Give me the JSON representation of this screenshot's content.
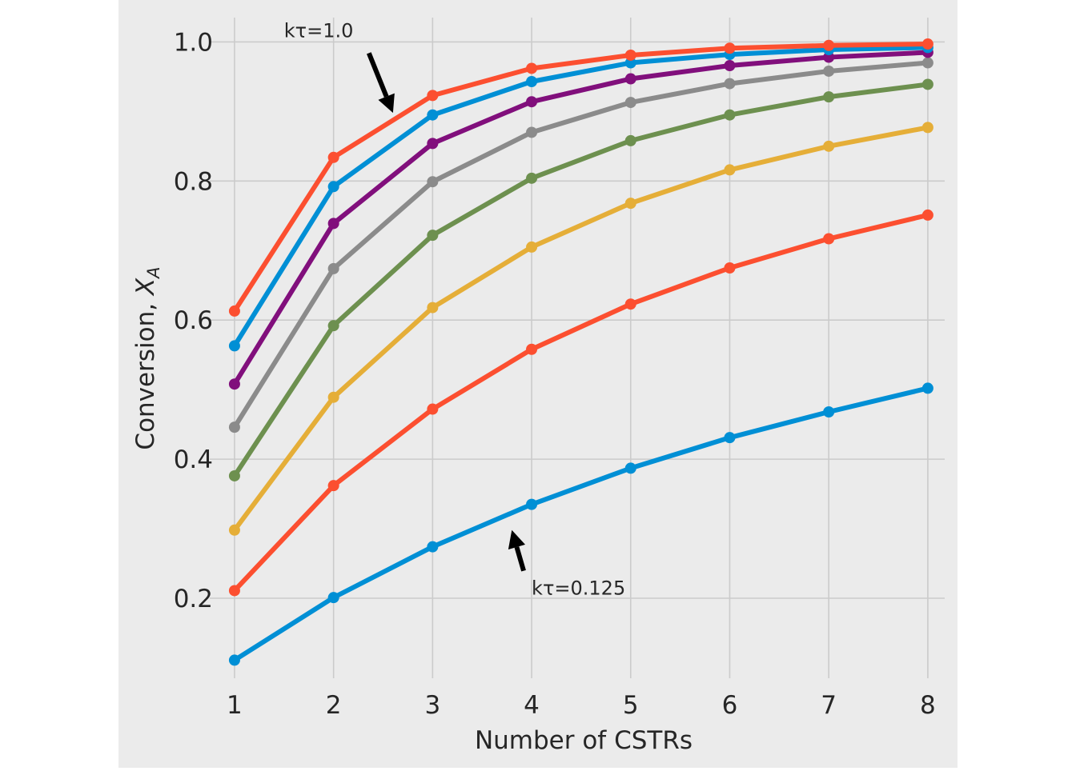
{
  "chart_data": {
    "type": "line",
    "title": "",
    "xlabel": "Number of CSTRs",
    "ylabel": "Conversion, ",
    "ylabel_math": "X",
    "ylabel_sub": "A",
    "xlim": [
      0.75,
      8.3
    ],
    "ylim": [
      0.085,
      1.035
    ],
    "x": [
      1,
      2,
      3,
      4,
      5,
      6,
      7,
      8
    ],
    "xticks": [
      "1",
      "2",
      "3",
      "4",
      "5",
      "6",
      "7",
      "8"
    ],
    "yticks": [
      0.2,
      0.4,
      0.6,
      0.8,
      1.0
    ],
    "ytick_labels": [
      "0.2",
      "0.4",
      "0.6",
      "0.8",
      "1.0"
    ],
    "grid": true,
    "background": "#ebebeb",
    "series": [
      {
        "color": "#008fd5",
        "values": [
          0.111,
          0.201,
          0.274,
          0.335,
          0.387,
          0.431,
          0.468,
          0.502
        ]
      },
      {
        "color": "#fc4f30",
        "values": [
          0.211,
          0.362,
          0.472,
          0.558,
          0.623,
          0.675,
          0.717,
          0.751
        ]
      },
      {
        "color": "#e5ae38",
        "values": [
          0.298,
          0.489,
          0.618,
          0.705,
          0.768,
          0.816,
          0.85,
          0.877
        ]
      },
      {
        "color": "#6d904f",
        "values": [
          0.376,
          0.592,
          0.722,
          0.804,
          0.858,
          0.895,
          0.921,
          0.939
        ]
      },
      {
        "color": "#8b8b8b",
        "values": [
          0.446,
          0.674,
          0.799,
          0.87,
          0.913,
          0.94,
          0.958,
          0.97
        ]
      },
      {
        "color": "#810f7c",
        "values": [
          0.508,
          0.739,
          0.854,
          0.914,
          0.947,
          0.966,
          0.978,
          0.985
        ]
      },
      {
        "color": "#008fd5",
        "values": [
          0.563,
          0.792,
          0.895,
          0.943,
          0.97,
          0.982,
          0.989,
          0.992
        ]
      },
      {
        "color": "#fc4f30",
        "values": [
          0.613,
          0.834,
          0.923,
          0.962,
          0.981,
          0.991,
          0.995,
          0.997
        ]
      }
    ],
    "annotations": [
      {
        "text": "kτ=1.0",
        "xy": [
          2.6,
          0.898
        ],
        "xytext": [
          1.5,
          1.007
        ]
      },
      {
        "text": "kτ=0.125",
        "xy": [
          3.8,
          0.298
        ],
        "xytext": [
          4.0,
          0.205
        ]
      }
    ]
  }
}
